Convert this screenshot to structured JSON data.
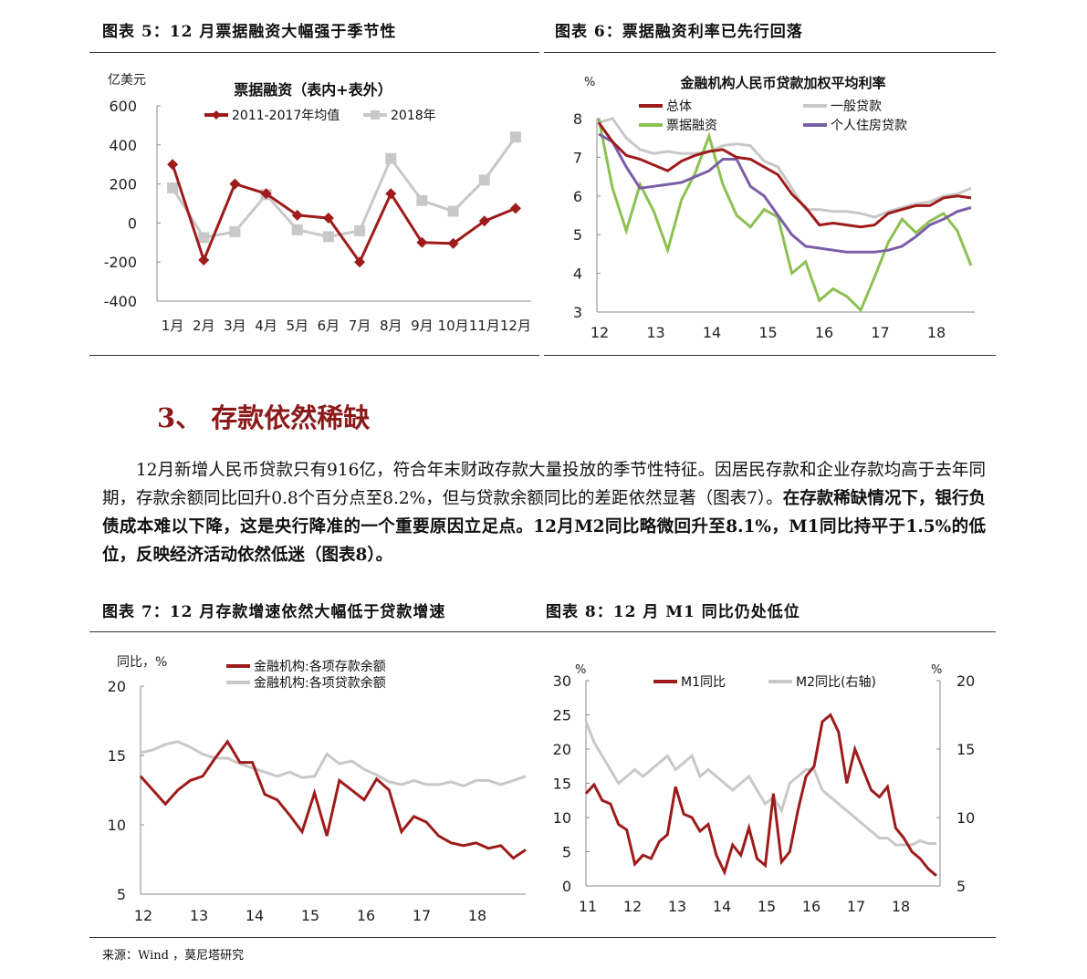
{
  "figures": {
    "fig5_title": "图表 5：12 月票据融资大幅强于季节性",
    "fig6_title": "图表 6：票据融资利率已先行回落",
    "fig7_title": "图表 7：12 月存款增速依然大幅低于贷款增速",
    "fig8_title": "图表 8：12 月 M1 同比仍处低位"
  },
  "section": {
    "title": "3、 存款依然稀缺"
  },
  "paragraph": {
    "normal1": "12月新增人民币贷款只有916亿，符合年末财政存款大量投放的季节性特征。因居民存款和企业存款均高于去年同期，存款余额同比回升0.8个百分点至8.2%，但与贷款余额同比的差距依然显著（图表7）。",
    "bold1": "在存款稀缺情况下，银行负债成本难以下降，这是央行降准的一个重要原因立足点。12月M2同比略微回升至8.1%，M1同比持平于1.5%的低位，反映经济活动依然低迷（图表8）。"
  },
  "source": "来源：Wind ，莫尼塔研究",
  "colors": {
    "red": "#9e1b1b",
    "gray": "#c8c8c8",
    "green": "#8cc152",
    "purple": "#7b5ea7"
  },
  "chart_data": [
    {
      "type": "line",
      "title": "票据融资（表内+表外）",
      "ylabel": "亿美元",
      "categories": [
        "1月",
        "2月",
        "3月",
        "4月",
        "5月",
        "6月",
        "7月",
        "8月",
        "9月",
        "10月",
        "11月",
        "12月"
      ],
      "ylim": [
        -400,
        600
      ],
      "yticks": [
        "600",
        "400",
        "200",
        "0",
        "-200",
        "-400"
      ],
      "series": [
        {
          "name": "2011-2017年均值",
          "values": [
            300,
            -190,
            200,
            150,
            40,
            25,
            -200,
            150,
            -100,
            -105,
            10,
            75
          ]
        },
        {
          "name": "2018年",
          "values": [
            180,
            -75,
            -45,
            145,
            -35,
            -70,
            -40,
            330,
            115,
            60,
            220,
            440
          ]
        }
      ]
    },
    {
      "type": "line",
      "title": "金融机构人民币贷款加权平均利率",
      "ylabel": "%",
      "ylim": [
        3,
        8
      ],
      "yticks": [
        "8",
        "7",
        "6",
        "5",
        "4",
        "3"
      ],
      "xticks": [
        "12",
        "13",
        "14",
        "15",
        "16",
        "17",
        "18"
      ],
      "series": [
        {
          "name": "总体",
          "values": [
            7.9,
            7.4,
            7.05,
            6.95,
            6.8,
            6.65,
            6.9,
            7.05,
            7.15,
            7.2,
            7.0,
            6.95,
            6.75,
            6.55,
            6.05,
            5.7,
            5.25,
            5.3,
            5.25,
            5.2,
            5.25,
            5.55,
            5.65,
            5.75,
            5.75,
            5.95,
            6.0,
            5.95
          ]
        },
        {
          "name": "一般贷款",
          "values": [
            7.9,
            8.0,
            7.5,
            7.2,
            7.1,
            7.15,
            7.1,
            7.1,
            7.15,
            7.3,
            7.35,
            7.3,
            6.9,
            6.75,
            6.2,
            5.65,
            5.65,
            5.6,
            5.6,
            5.55,
            5.45,
            5.6,
            5.7,
            5.8,
            5.85,
            6.0,
            6.05,
            6.2
          ]
        },
        {
          "name": "票据融资",
          "values": [
            8.0,
            6.2,
            5.1,
            6.3,
            5.6,
            4.6,
            5.9,
            6.6,
            7.55,
            6.3,
            5.5,
            5.2,
            5.65,
            5.45,
            4.0,
            4.3,
            3.3,
            3.6,
            3.4,
            3.05,
            3.9,
            4.8,
            5.4,
            5.05,
            5.35,
            5.55,
            5.1,
            4.2
          ]
        },
        {
          "name": "个人住房贷款",
          "values": [
            7.6,
            7.4,
            6.75,
            6.2,
            6.25,
            6.3,
            6.35,
            6.5,
            6.65,
            6.95,
            6.95,
            6.25,
            6.0,
            5.5,
            5.0,
            4.7,
            4.65,
            4.6,
            4.55,
            4.55,
            4.55,
            4.6,
            4.7,
            4.95,
            5.25,
            5.4,
            5.6,
            5.7
          ]
        }
      ]
    },
    {
      "type": "line",
      "ylabel": "同比，%",
      "ylim": [
        5,
        20
      ],
      "yticks": [
        "20",
        "15",
        "10",
        "5"
      ],
      "xticks": [
        "12",
        "13",
        "14",
        "15",
        "16",
        "17",
        "18"
      ],
      "series": [
        {
          "name": "金融机构:各项存款余额",
          "values": [
            13.5,
            12.5,
            11.5,
            12.5,
            13.2,
            13.5,
            14.8,
            16.0,
            14.5,
            14.5,
            12.2,
            11.8,
            10.7,
            9.5,
            12.3,
            9.2,
            13.2,
            12.5,
            11.8,
            13.3,
            12.5,
            9.5,
            10.6,
            10.2,
            9.2,
            8.7,
            8.5,
            8.7,
            8.3,
            8.5,
            7.6,
            8.2
          ]
        },
        {
          "name": "金融机构:各项贷款余额",
          "values": [
            15.2,
            15.4,
            15.8,
            16.0,
            15.6,
            15.1,
            14.8,
            14.8,
            14.4,
            14.1,
            13.8,
            13.5,
            13.8,
            13.4,
            13.5,
            15.1,
            14.4,
            14.6,
            14.0,
            13.6,
            13.1,
            12.9,
            13.2,
            12.9,
            12.9,
            13.1,
            12.8,
            13.2,
            13.2,
            12.9,
            13.2,
            13.5
          ]
        }
      ]
    },
    {
      "type": "line",
      "ylabel": "%",
      "y2label": "%",
      "ylim": [
        0,
        30
      ],
      "y2lim": [
        5,
        20
      ],
      "yticks": [
        "30",
        "25",
        "20",
        "15",
        "10",
        "5",
        "0"
      ],
      "y2ticks": [
        "20",
        "15",
        "10",
        "5"
      ],
      "xticks": [
        "11",
        "12",
        "13",
        "14",
        "15",
        "16",
        "17",
        "18"
      ],
      "series": [
        {
          "name": "M1同比",
          "values": [
            13.5,
            14.8,
            12.5,
            12.0,
            9.0,
            8.2,
            3.2,
            4.5,
            4.0,
            6.5,
            7.5,
            14.5,
            10.5,
            10.0,
            8.0,
            9.0,
            4.5,
            2.0,
            6.0,
            4.5,
            8.5,
            4.0,
            3.0,
            13.5,
            3.5,
            5.0,
            11.0,
            16.0,
            17.5,
            24.0,
            25.0,
            22.5,
            15.0,
            20.0,
            17.0,
            14.0,
            13.0,
            14.5,
            8.5,
            7.0,
            5.0,
            4.0,
            2.5,
            1.5
          ]
        },
        {
          "name": "M2同比(右轴)",
          "values": [
            17.0,
            15.5,
            14.5,
            13.5,
            12.5,
            13.0,
            13.5,
            13.0,
            13.5,
            14.0,
            14.5,
            13.5,
            14.0,
            14.5,
            13.0,
            13.5,
            13.0,
            12.5,
            12.0,
            12.5,
            13.0,
            12.0,
            11.0,
            11.5,
            10.5,
            12.5,
            13.0,
            13.5,
            13.5,
            12.0,
            11.5,
            11.0,
            10.5,
            10.0,
            9.5,
            9.0,
            8.5,
            8.5,
            8.0,
            8.0,
            8.0,
            8.3,
            8.1,
            8.1
          ]
        }
      ]
    }
  ]
}
